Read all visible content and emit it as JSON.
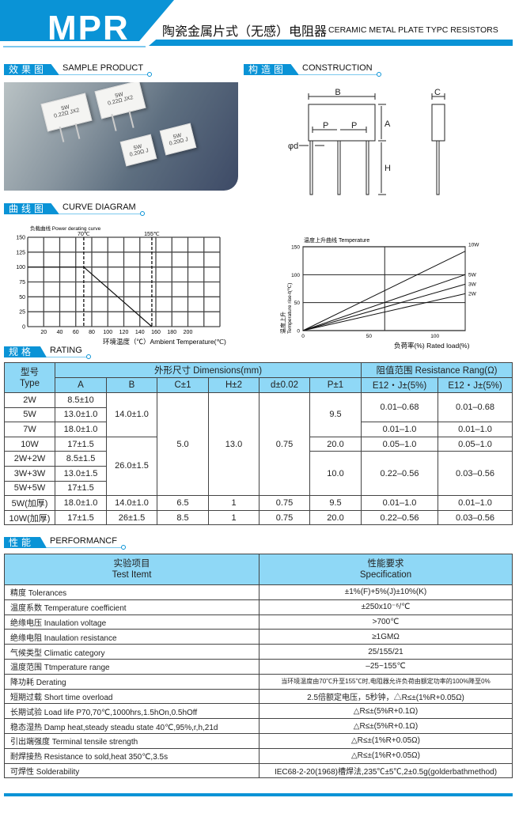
{
  "header": {
    "model": "MPR",
    "title_cn": "陶瓷金属片式（无感）电阻器",
    "title_en": "CERAMIC METAL PLATE TYPC RESISTORS"
  },
  "sections": {
    "sample": {
      "cn": "效果图",
      "en": "SAMPLE PRODUCT"
    },
    "construction": {
      "cn": "构造图",
      "en": "CONSTRUCTION"
    },
    "curve": {
      "cn": "曲线图",
      "en": "CURVE DIAGRAM"
    },
    "rating": {
      "cn": "规格",
      "en": "RATING"
    },
    "performance": {
      "cn": "性能",
      "en": "PERFORMANCF"
    }
  },
  "sample_photo": {
    "labels": [
      [
        "5W",
        "0.22Ω JX2"
      ],
      [
        "5W",
        "0.22Ω JX2"
      ],
      [
        "5W",
        "0.20Ω J"
      ],
      [
        "5W",
        "0.20Ω J"
      ]
    ]
  },
  "construction": {
    "labels": {
      "B": "B",
      "A": "A",
      "P1": "P",
      "P2": "P",
      "H": "H",
      "d": "φd",
      "C": "C"
    }
  },
  "colors": {
    "accent": "#0a93d6",
    "table_header": "#8fd8f6"
  },
  "chart_data": [
    {
      "type": "line",
      "title": "负载曲线 Power derating curve",
      "xlabel": "环境温度（℃）Ambient Temperature(℃)",
      "ylabel": "",
      "xlim": [
        0,
        240
      ],
      "ylim": [
        0,
        150
      ],
      "xticks": [
        20,
        40,
        60,
        80,
        100,
        120,
        140,
        160,
        180,
        200
      ],
      "yticks": [
        0,
        25,
        50,
        75,
        100,
        125,
        150
      ],
      "grid": true,
      "markers": [
        {
          "x": 70,
          "label": "70℃"
        },
        {
          "x": 155,
          "label": "155℃"
        }
      ],
      "series": [
        {
          "x": [
            0,
            70,
            155
          ],
          "y": [
            100,
            100,
            0
          ]
        }
      ]
    },
    {
      "type": "line",
      "title": "温度上升曲线 Temperature",
      "xlabel": "负荷率(%) Rated load(%)",
      "ylabel_cn": "温度上升",
      "ylabel": "Temperature rise-t(℃)",
      "xlim": [
        0,
        123
      ],
      "ylim": [
        0,
        150
      ],
      "xticks": [
        0,
        50,
        100
      ],
      "yticks": [
        0,
        50,
        100,
        150
      ],
      "grid": true,
      "series": [
        {
          "name": "10W",
          "x": [
            0,
            123
          ],
          "y": [
            0,
            142
          ]
        },
        {
          "name": "5W",
          "x": [
            0,
            123
          ],
          "y": [
            0,
            100
          ]
        },
        {
          "name": "3W",
          "x": [
            0,
            123
          ],
          "y": [
            0,
            83
          ]
        },
        {
          "name": "2W",
          "x": [
            0,
            123
          ],
          "y": [
            0,
            66
          ]
        }
      ]
    }
  ],
  "rating": {
    "type_header": [
      "型号",
      "Type"
    ],
    "dims_header": "外形尺寸 Dimensions(mm)",
    "res_header": "阻值范围 Resistance Rang(Ω)",
    "sub_headers": [
      "A",
      "B",
      "C±1",
      "H±2",
      "d±0.02",
      "P±1",
      "E12・J±(5%)",
      "E12・J±(5%)"
    ],
    "rows": [
      [
        "2W",
        "8.5±10",
        "14.0±1.0",
        "5.0",
        "13.0",
        "0.75",
        "9.5",
        "0.01–0.68",
        "0.01–0.68"
      ],
      [
        "5W",
        "13.0±1.0"
      ],
      [
        "7W",
        "18.0±1.0",
        "0.01–1.0",
        "0.01–1.0"
      ],
      [
        "10W",
        "17±1.5",
        "26.0±1.5",
        "20.0",
        "0.05–1.0",
        "0.05–1.0"
      ],
      [
        "2W+2W",
        "8.5±1.5",
        "10.0",
        "0.22–0.56",
        "0.03–0.56"
      ],
      [
        "3W+3W",
        "13.0±1.5"
      ],
      [
        "5W+5W",
        "17±1.5"
      ],
      [
        "5W(加厚)",
        "18.0±1.0",
        "14.0±1.0",
        "6.5",
        "1",
        "0.75",
        "9.5",
        "0.01–1.0",
        "0.01–1.0"
      ],
      [
        "10W(加厚)",
        "17±1.5",
        "26±1.5",
        "8.5",
        "1",
        "0.75",
        "20.0",
        "0.22–0.56",
        "0.03–0.56"
      ]
    ]
  },
  "performance": {
    "headers": [
      [
        "实验项目",
        "Test Itemt"
      ],
      [
        "性能要求",
        "Specification"
      ]
    ],
    "rows": [
      [
        "精度 Tolerances",
        "±1%(F)+5%(J)±10%(K)"
      ],
      [
        "温度系数 Temperature coefficient",
        "±250x10⁻⁶/℃"
      ],
      [
        "绝缘电压 Inaulation voltage",
        ">700℃"
      ],
      [
        "绝缘电阻 Inaulation resistance",
        "≥1GMΩ"
      ],
      [
        "气候类型 Climatic category",
        "25/155/21"
      ],
      [
        "温度范围 Ttmperature range",
        "–25~155℃"
      ],
      [
        "降功耗 Derating",
        "当环境温度由70℃升至155℃时,电阻器允许负荷由额定功率的100%降至0%"
      ],
      [
        "短期过载 Short time overload",
        "2.5倍额定电压，5秒钟，△R≤±(1%R+0.05Ω)"
      ],
      [
        "长期试验 Load life P70,70℃,1000hrs,1.5hOn,0.5hOff",
        "△R≤±(5%R+0.1Ω)"
      ],
      [
        "稳态湿热 Damp heat,steady steadu state 40℃,95%,r,h,21d",
        "△R≤±(5%R+0.1Ω)"
      ],
      [
        "引出端强度 Terminal tensile strength",
        "△R≤±(1%R+0.05Ω)"
      ],
      [
        "耐焊接热 Resistance to sold,heat 350℃,3.5s",
        "△R≤±(1%R+0.05Ω)"
      ],
      [
        "可焊性 Solderability",
        "IEC68-2-20(1968)槽焊法,235℃±5℃,2±0.5g(golderbathmethod)"
      ]
    ]
  }
}
